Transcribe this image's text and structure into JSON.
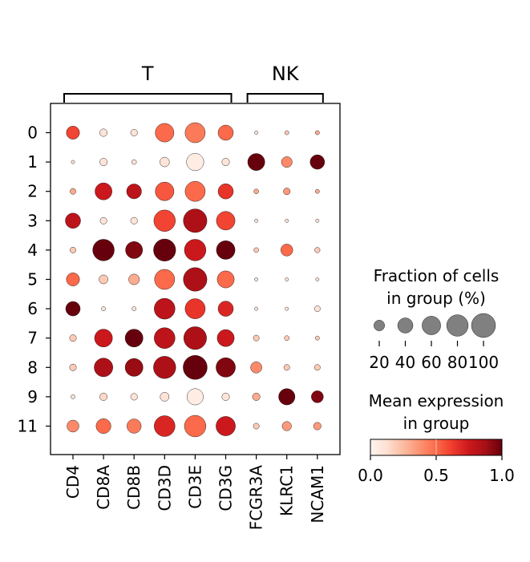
{
  "chart_data": {
    "type": "dotplot",
    "genes": [
      "CD4",
      "CD8A",
      "CD8B",
      "CD3D",
      "CD3E",
      "CD3G",
      "FCGR3A",
      "KLRC1",
      "NCAM1"
    ],
    "clusters": [
      "0",
      "1",
      "2",
      "3",
      "4",
      "5",
      "6",
      "7",
      "8",
      "9",
      "11"
    ],
    "gene_groups": [
      {
        "label": "T",
        "genes": [
          "CD4",
          "CD8A",
          "CD8B",
          "CD3D",
          "CD3E",
          "CD3G"
        ]
      },
      {
        "label": "NK",
        "genes": [
          "FCGR3A",
          "KLRC1",
          "NCAM1"
        ]
      }
    ],
    "fraction": [
      [
        30,
        10,
        8,
        60,
        70,
        40,
        2,
        3,
        3
      ],
      [
        2,
        10,
        4,
        16,
        52,
        10,
        50,
        20,
        36
      ],
      [
        6,
        50,
        38,
        60,
        70,
        40,
        4,
        8,
        3
      ],
      [
        40,
        8,
        8,
        80,
        96,
        60,
        2,
        2,
        2
      ],
      [
        6,
        80,
        50,
        85,
        80,
        60,
        4,
        25,
        5
      ],
      [
        30,
        14,
        20,
        70,
        96,
        50,
        2,
        2,
        2
      ],
      [
        36,
        3,
        3,
        75,
        70,
        40,
        2,
        2,
        6
      ],
      [
        8,
        55,
        55,
        75,
        90,
        50,
        6,
        4,
        3
      ],
      [
        8,
        60,
        55,
        86,
        100,
        65,
        22,
        6,
        6
      ],
      [
        3,
        10,
        8,
        14,
        46,
        10,
        10,
        46,
        25
      ],
      [
        25,
        38,
        35,
        75,
        80,
        65,
        6,
        15,
        10
      ]
    ],
    "expression": [
      [
        0.6,
        0.1,
        0.1,
        0.5,
        0.45,
        0.5,
        0.1,
        0.2,
        0.3
      ],
      [
        0.1,
        0.1,
        0.1,
        0.1,
        0.05,
        0.1,
        1.0,
        0.4,
        1.0
      ],
      [
        0.3,
        0.75,
        0.8,
        0.55,
        0.5,
        0.65,
        0.3,
        0.35,
        0.3
      ],
      [
        0.8,
        0.1,
        0.1,
        0.6,
        0.85,
        0.6,
        0.1,
        0.1,
        0.1
      ],
      [
        0.2,
        1.0,
        0.95,
        1.0,
        0.75,
        1.0,
        0.2,
        0.5,
        0.2
      ],
      [
        0.5,
        0.2,
        0.3,
        0.5,
        0.85,
        0.5,
        0.1,
        0.1,
        0.1
      ],
      [
        1.0,
        0.1,
        0.1,
        0.8,
        0.65,
        0.7,
        0.1,
        0.1,
        0.1
      ],
      [
        0.2,
        0.75,
        1.0,
        0.8,
        0.85,
        0.75,
        0.2,
        0.2,
        0.2
      ],
      [
        0.2,
        0.85,
        0.9,
        0.85,
        1.0,
        0.95,
        0.4,
        0.2,
        0.2
      ],
      [
        0.1,
        0.15,
        0.1,
        0.1,
        0.05,
        0.1,
        0.3,
        1.0,
        0.95
      ],
      [
        0.4,
        0.5,
        0.45,
        0.7,
        0.5,
        0.75,
        0.2,
        0.35,
        0.35
      ]
    ],
    "size_legend": {
      "title_lines": [
        "Fraction of cells",
        "in group (%)"
      ],
      "values": [
        20,
        40,
        60,
        80,
        100
      ],
      "labels": [
        "20",
        "40",
        "60",
        "80",
        "100"
      ]
    },
    "color_legend": {
      "title_lines": [
        "Mean expression",
        "in group"
      ],
      "ticks": [
        0.0,
        0.5,
        1.0
      ],
      "tick_labels": [
        "0.0",
        "0.5",
        "1.0"
      ],
      "colormap": "Reds",
      "range": [
        0,
        1
      ]
    }
  }
}
